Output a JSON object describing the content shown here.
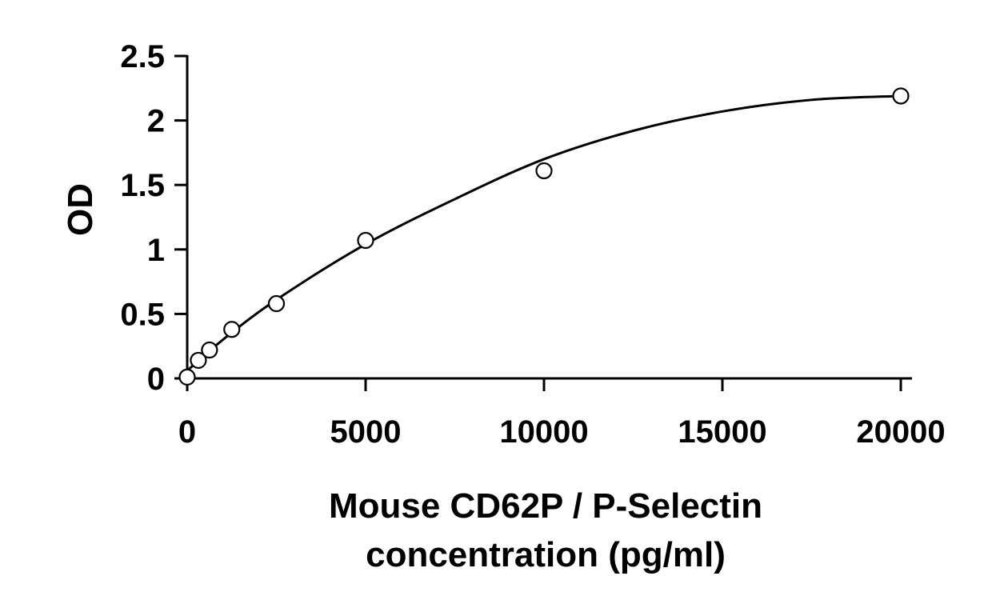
{
  "chart_data": {
    "type": "scatter",
    "title": "",
    "xlabel_lines": [
      "Mouse CD62P / P-Selectin",
      "concentration (pg/ml)"
    ],
    "ylabel": "OD",
    "xlim": [
      0,
      20000
    ],
    "ylim": [
      0,
      2.5
    ],
    "x_ticks": [
      0,
      5000,
      10000,
      15000,
      20000
    ],
    "x_tick_labels": [
      "0",
      "5000",
      "10000",
      "15000",
      "20000"
    ],
    "y_ticks": [
      0,
      0.5,
      1,
      1.5,
      2,
      2.5
    ],
    "y_tick_labels": [
      "0",
      "0.5",
      "1",
      "1.5",
      "2",
      "2.5"
    ],
    "grid": false,
    "legend": "none",
    "colors": {
      "axis": "#000000",
      "marker_stroke": "#000000",
      "marker_fill": "#ffffff",
      "curve": "#000000"
    },
    "series": [
      {
        "marker": "open-circle",
        "x": [
          0,
          312.5,
          625,
          1250,
          2500,
          5000,
          10000,
          20000
        ],
        "y": [
          0.01,
          0.14,
          0.22,
          0.38,
          0.58,
          1.07,
          1.61,
          2.19
        ]
      }
    ],
    "fit_curve": {
      "type": "smooth-curve",
      "x": [
        0,
        1000,
        2500,
        5000,
        7500,
        10000,
        12500,
        15000,
        17500,
        20000
      ],
      "y": [
        0.06,
        0.3,
        0.61,
        1.04,
        1.39,
        1.7,
        1.92,
        2.07,
        2.16,
        2.19
      ]
    }
  }
}
